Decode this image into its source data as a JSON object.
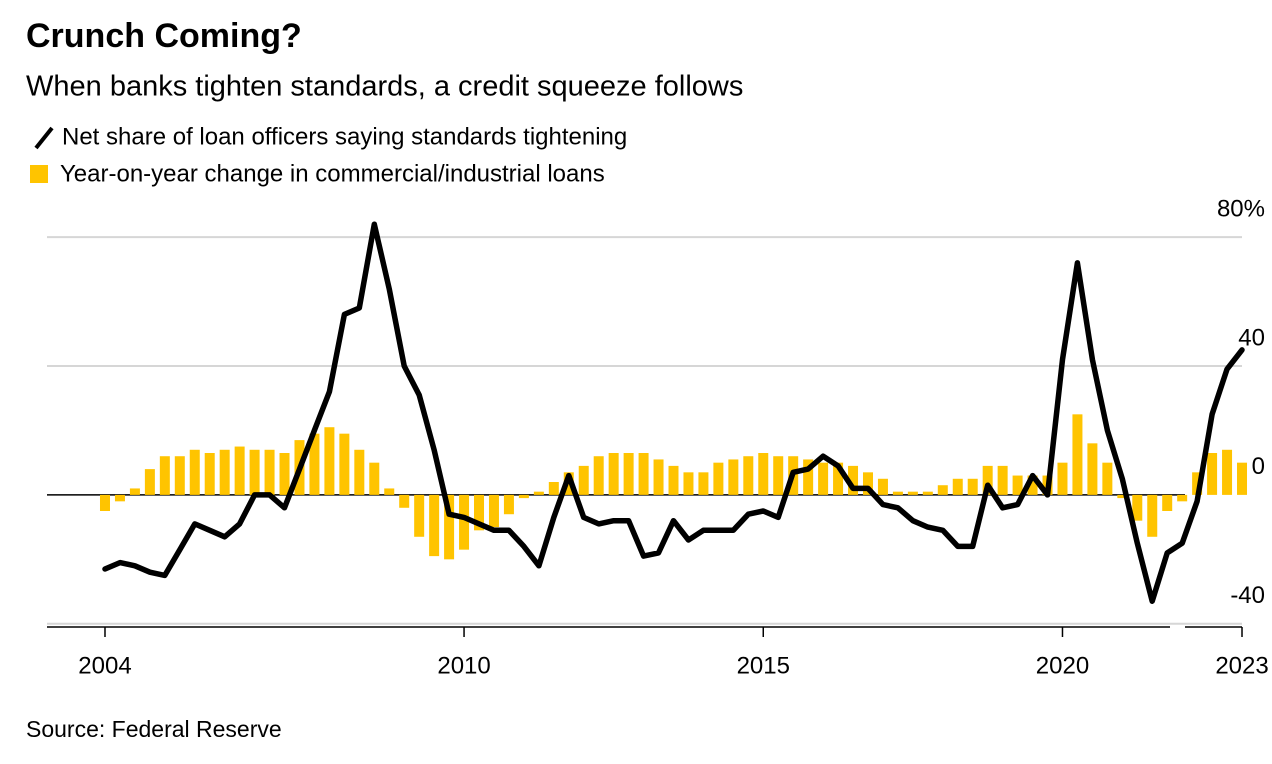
{
  "chart_data": {
    "type": "combo",
    "title": "Crunch Coming?",
    "subtitle": "When banks tighten standards, a credit squeeze follows",
    "source": "Source: Federal Reserve",
    "x": [
      2004,
      2004.25,
      2004.5,
      2004.75,
      2005,
      2005.25,
      2005.5,
      2005.75,
      2006,
      2006.25,
      2006.5,
      2006.75,
      2007,
      2007.25,
      2007.5,
      2007.75,
      2008,
      2008.25,
      2008.5,
      2008.75,
      2009,
      2009.25,
      2009.5,
      2009.75,
      2010,
      2010.25,
      2010.5,
      2010.75,
      2011,
      2011.25,
      2011.5,
      2011.75,
      2012,
      2012.25,
      2012.5,
      2012.75,
      2013,
      2013.25,
      2013.5,
      2013.75,
      2014,
      2014.25,
      2014.5,
      2014.75,
      2015,
      2015.25,
      2015.5,
      2015.75,
      2016,
      2016.25,
      2016.5,
      2016.75,
      2017,
      2017.25,
      2017.5,
      2017.75,
      2018,
      2018.25,
      2018.5,
      2018.75,
      2019,
      2019.25,
      2019.5,
      2019.75,
      2020,
      2020.25,
      2020.5,
      2020.75,
      2021,
      2021.25,
      2021.5,
      2021.75,
      2022,
      2022.25,
      2022.5,
      2022.75,
      2023
    ],
    "series": [
      {
        "name": "Net share of loan officers saying standards tightening",
        "type": "line",
        "color": "#000000",
        "values": [
          -23,
          -21,
          -22,
          -24,
          -25,
          -17,
          -9,
          -11,
          -13,
          -9,
          0,
          0,
          -4,
          8,
          20,
          32,
          56,
          58,
          84,
          64,
          40,
          31,
          14,
          -6,
          -7,
          -9,
          -11,
          -11,
          -16,
          -22,
          -7,
          6,
          -7,
          -9,
          -8,
          -8,
          -19,
          -18,
          -8,
          -14,
          -11,
          -11,
          -11,
          -6,
          -5,
          -7,
          7,
          8,
          12,
          9,
          2,
          2,
          -3,
          -4,
          -8,
          -10,
          -11,
          -16,
          -16,
          3,
          -4,
          -3,
          6,
          0,
          42,
          72,
          42,
          20,
          5,
          -15,
          -33,
          -18,
          -15,
          -2,
          25,
          39,
          45
        ]
      },
      {
        "name": "Year-on-year change in commercial/industrial loans",
        "type": "bar",
        "color": "#ffc400",
        "values": [
          -5,
          -2,
          2,
          8,
          12,
          12,
          14,
          13,
          14,
          15,
          14,
          14,
          13,
          17,
          19,
          21,
          19,
          14,
          10,
          2,
          -4,
          -13,
          -19,
          -20,
          -17,
          -11,
          -10,
          -6,
          -1,
          1,
          4,
          7,
          9,
          12,
          13,
          13,
          13,
          11,
          9,
          7,
          7,
          10,
          11,
          12,
          13,
          12,
          12,
          11,
          10,
          10,
          9,
          7,
          5,
          1,
          1,
          1,
          3,
          5,
          5,
          9,
          9,
          6,
          6,
          6,
          10,
          25,
          16,
          10,
          -1,
          -8,
          -13,
          -5,
          -2,
          7,
          13,
          14,
          10
        ]
      }
    ],
    "xlim": [
      2003.95,
      2023.05
    ],
    "xticks": [
      2004,
      2010,
      2015,
      2020,
      2023
    ],
    "ylim": [
      -41,
      85
    ],
    "yticks": [
      {
        "value": 80,
        "label": "80%"
      },
      40,
      0,
      -40
    ],
    "grid": true
  }
}
